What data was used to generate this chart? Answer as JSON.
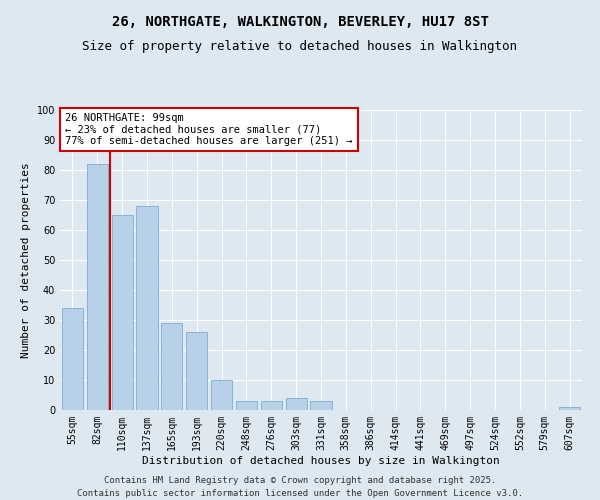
{
  "title": "26, NORTHGATE, WALKINGTON, BEVERLEY, HU17 8ST",
  "subtitle": "Size of property relative to detached houses in Walkington",
  "xlabel": "Distribution of detached houses by size in Walkington",
  "ylabel": "Number of detached properties",
  "categories": [
    "55sqm",
    "82sqm",
    "110sqm",
    "137sqm",
    "165sqm",
    "193sqm",
    "220sqm",
    "248sqm",
    "276sqm",
    "303sqm",
    "331sqm",
    "358sqm",
    "386sqm",
    "414sqm",
    "441sqm",
    "469sqm",
    "497sqm",
    "524sqm",
    "552sqm",
    "579sqm",
    "607sqm"
  ],
  "values": [
    34,
    82,
    65,
    68,
    29,
    26,
    10,
    3,
    3,
    4,
    3,
    0,
    0,
    0,
    0,
    0,
    0,
    0,
    0,
    0,
    1
  ],
  "bar_color": "#b8d0e8",
  "bar_edge_color": "#7aadd4",
  "property_line_x": 1.5,
  "property_line_label": "26 NORTHGATE: 99sqm",
  "annotation_line1": "← 23% of detached houses are smaller (77)",
  "annotation_line2": "77% of semi-detached houses are larger (251) →",
  "annotation_box_color": "#ffffff",
  "annotation_box_edge": "#cc0000",
  "red_line_color": "#cc0000",
  "ylim": [
    0,
    100
  ],
  "yticks": [
    0,
    10,
    20,
    30,
    40,
    50,
    60,
    70,
    80,
    90,
    100
  ],
  "footer1": "Contains HM Land Registry data © Crown copyright and database right 2025.",
  "footer2": "Contains public sector information licensed under the Open Government Licence v3.0.",
  "bg_color": "#dde8f0",
  "grid_color": "#ffffff",
  "title_fontsize": 10,
  "subtitle_fontsize": 9,
  "axis_label_fontsize": 8,
  "tick_fontsize": 7,
  "annotation_fontsize": 7.5,
  "footer_fontsize": 6.5
}
